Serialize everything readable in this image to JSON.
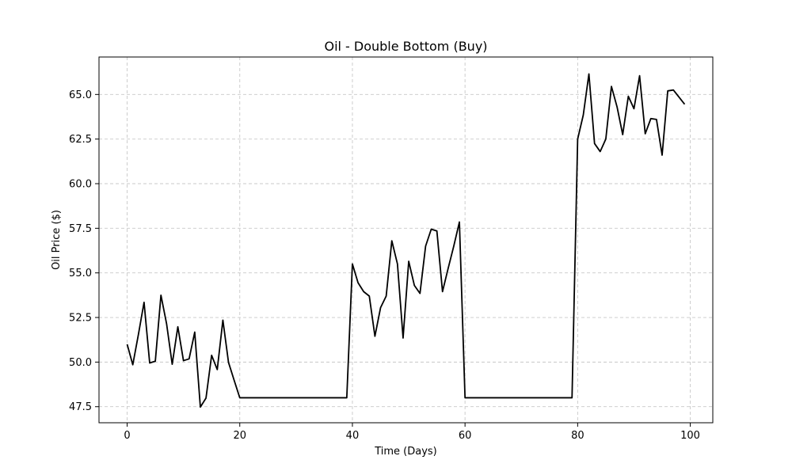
{
  "chart_data": {
    "type": "line",
    "title": "Oil - Double Bottom (Buy)",
    "xlabel": "Time (Days)",
    "ylabel": "Oil Price ($)",
    "xlim": [
      -5,
      104
    ],
    "ylim": [
      46.6,
      67.1
    ],
    "xticks": [
      0,
      20,
      40,
      60,
      80,
      100
    ],
    "yticks": [
      47.5,
      50.0,
      52.5,
      55.0,
      57.5,
      60.0,
      62.5,
      65.0
    ],
    "xtick_labels": [
      "0",
      "20",
      "40",
      "60",
      "80",
      "100"
    ],
    "ytick_labels": [
      "47.5",
      "50.0",
      "52.5",
      "55.0",
      "57.5",
      "60.0",
      "62.5",
      "65.0"
    ],
    "grid": true,
    "line_color": "#000000",
    "series": [
      {
        "x": [
          0,
          1,
          2,
          3,
          4,
          5,
          6,
          7,
          8,
          9,
          10,
          11,
          12,
          13,
          14,
          15,
          16,
          17,
          18,
          19,
          20,
          21,
          22,
          23,
          24,
          25,
          26,
          27,
          28,
          29,
          30,
          31,
          32,
          33,
          34,
          35,
          36,
          37,
          38,
          39,
          40,
          41,
          42,
          43,
          44,
          45,
          46,
          47,
          48,
          49,
          50,
          51,
          52,
          53,
          54,
          55,
          56,
          57,
          58,
          59,
          60,
          61,
          62,
          63,
          64,
          65,
          66,
          67,
          68,
          69,
          70,
          71,
          72,
          73,
          74,
          75,
          76,
          77,
          78,
          79,
          80,
          81,
          82,
          83,
          84,
          85,
          86,
          87,
          88,
          89,
          90,
          91,
          92,
          93,
          94,
          95,
          96,
          97,
          98,
          99
        ],
        "values": [
          51.0,
          49.85,
          51.55,
          53.35,
          49.95,
          50.05,
          53.75,
          52.15,
          49.88,
          51.98,
          50.08,
          50.18,
          51.68,
          47.48,
          47.98,
          50.38,
          49.58,
          52.35,
          49.98,
          48.98,
          48.0,
          48.0,
          48.0,
          48.0,
          48.0,
          48.0,
          48.0,
          48.0,
          48.0,
          48.0,
          48.0,
          48.0,
          48.0,
          48.0,
          48.0,
          48.0,
          48.0,
          48.0,
          48.0,
          48.0,
          55.5,
          54.45,
          53.95,
          53.7,
          51.45,
          53.05,
          53.7,
          56.8,
          55.5,
          51.35,
          55.65,
          54.3,
          53.85,
          56.5,
          57.45,
          57.35,
          53.95,
          55.25,
          56.5,
          57.85,
          48.0,
          48.0,
          48.0,
          48.0,
          48.0,
          48.0,
          48.0,
          48.0,
          48.0,
          48.0,
          48.0,
          48.0,
          48.0,
          48.0,
          48.0,
          48.0,
          48.0,
          48.0,
          48.0,
          48.0,
          62.5,
          63.85,
          66.15,
          62.25,
          61.8,
          62.5,
          65.45,
          64.3,
          62.75,
          64.9,
          64.2,
          66.05,
          62.8,
          63.65,
          63.6,
          61.6,
          65.2,
          65.25,
          64.85,
          64.45
        ]
      }
    ]
  }
}
